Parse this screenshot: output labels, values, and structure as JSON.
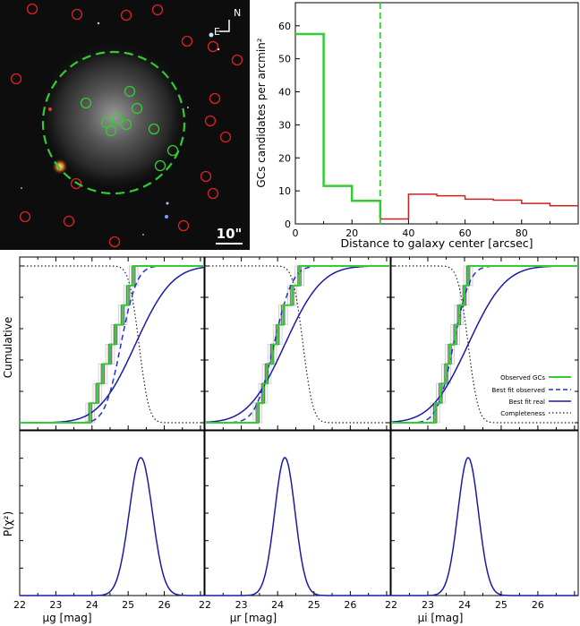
{
  "image_panel": {
    "north_label": "N",
    "east_label": "E",
    "scale_label": "10\"",
    "colors": {
      "inner_gc": "#33cc33",
      "outer_gc": "#dd2222",
      "aperture": "#33cc33"
    }
  },
  "chart_data": [
    {
      "type": "line",
      "panel": "radial-density",
      "xlabel": "Distance to galaxy center [arcsec]",
      "ylabel": "GCs candidates per arcmin²",
      "xlim": [
        0,
        100
      ],
      "ylim": [
        0,
        67
      ],
      "xticks": [
        "0",
        "20",
        "40",
        "60",
        "80"
      ],
      "yticks": [
        "0",
        "10",
        "20",
        "30",
        "40",
        "50",
        "60"
      ],
      "vline_x": 30,
      "series": [
        {
          "color": "#33cc33",
          "step_edges": [
            0,
            10,
            20,
            30
          ],
          "values": [
            57.5,
            11.5,
            7,
            1.5
          ]
        },
        {
          "color": "#cc2222",
          "step_edges": [
            30,
            40,
            50,
            60,
            70,
            80,
            90,
            100
          ],
          "values": [
            1.5,
            9,
            8.5,
            7.5,
            7.2,
            6.2,
            5.5
          ]
        }
      ]
    },
    {
      "type": "line",
      "panel": "cumulative-luminosity-functions",
      "ylabel": "Cumulative",
      "legend": {
        "placement": "right",
        "entries": [
          "Observed GCs",
          "Best fit observed",
          "Best fit real",
          "Completeness"
        ]
      },
      "xticks": [
        "22",
        "23",
        "24",
        "25",
        "26"
      ],
      "subpanels": [
        {
          "band": "g",
          "turnover_real": 25.2,
          "sigma_real": 0.8,
          "turnover_obs": 24.8,
          "sigma_obs": 0.35,
          "completeness_m50": 25.3,
          "steps": [
            23.95,
            24.15,
            24.3,
            24.5,
            24.65,
            24.85,
            25.0,
            25.15
          ]
        },
        {
          "band": "r",
          "turnover_real": 24.2,
          "sigma_real": 0.8,
          "turnover_obs": 23.9,
          "sigma_obs": 0.4,
          "completeness_m50": 24.7,
          "steps": [
            23.45,
            23.6,
            23.7,
            23.85,
            24.0,
            24.15,
            24.4,
            24.6
          ]
        },
        {
          "band": "i",
          "turnover_real": 24.1,
          "sigma_real": 0.8,
          "turnover_obs": 23.7,
          "sigma_obs": 0.35,
          "completeness_m50": 24.1,
          "steps": [
            23.2,
            23.35,
            23.5,
            23.6,
            23.75,
            23.85,
            24.0,
            24.1
          ]
        }
      ]
    },
    {
      "type": "line",
      "panel": "chi2-probability",
      "ylabel": "P(χ²)",
      "xticks": [
        "22",
        "23",
        "24",
        "25",
        "26"
      ],
      "xlabels": [
        "μg [mag]",
        "μr [mag]",
        "μi [mag]"
      ],
      "subpanels": [
        {
          "band": "g",
          "peak": 25.35,
          "width": 0.32
        },
        {
          "band": "r",
          "peak": 24.2,
          "width": 0.28
        },
        {
          "band": "i",
          "peak": 24.1,
          "width": 0.28
        }
      ]
    }
  ]
}
